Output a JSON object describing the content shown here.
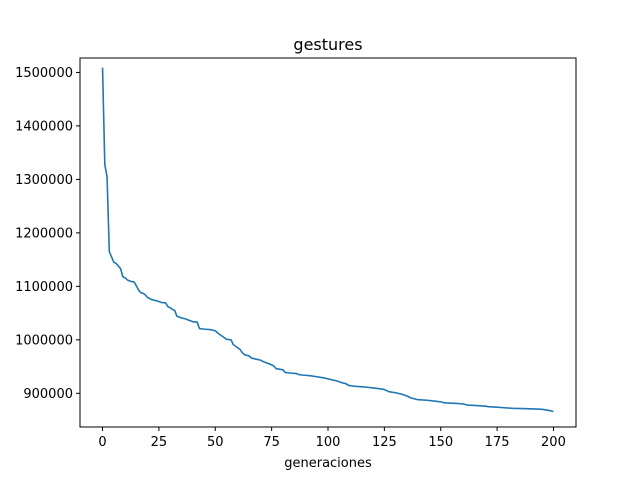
{
  "chart_data": {
    "type": "line",
    "title": "gestures",
    "xlabel": "generaciones",
    "ylabel": "",
    "xlim": [
      -10,
      210
    ],
    "ylim": [
      837000,
      1527000
    ],
    "xticks": [
      0,
      25,
      50,
      75,
      100,
      125,
      150,
      175,
      200
    ],
    "yticks": [
      900000,
      1000000,
      1100000,
      1200000,
      1300000,
      1400000,
      1500000
    ],
    "grid": false,
    "series_color": "#1f77b4",
    "series": [
      {
        "points": [
          [
            0,
            1509000
          ],
          [
            1,
            1328000
          ],
          [
            2,
            1305000
          ],
          [
            3,
            1165000
          ],
          [
            4,
            1155000
          ],
          [
            5,
            1145000
          ],
          [
            6,
            1143000
          ],
          [
            7,
            1138000
          ],
          [
            8,
            1133000
          ],
          [
            9,
            1118000
          ],
          [
            10,
            1116000
          ],
          [
            11,
            1112000
          ],
          [
            12,
            1110000
          ],
          [
            13,
            1109000
          ],
          [
            14,
            1108000
          ],
          [
            15,
            1101000
          ],
          [
            16,
            1093000
          ],
          [
            17,
            1088000
          ],
          [
            18,
            1087000
          ],
          [
            19,
            1084000
          ],
          [
            20,
            1079000
          ],
          [
            22,
            1075000
          ],
          [
            24,
            1073000
          ],
          [
            26,
            1070000
          ],
          [
            28,
            1069000
          ],
          [
            29,
            1062000
          ],
          [
            30,
            1060000
          ],
          [
            31,
            1057000
          ],
          [
            32,
            1055000
          ],
          [
            33,
            1044000
          ],
          [
            35,
            1041000
          ],
          [
            37,
            1039000
          ],
          [
            38,
            1037000
          ],
          [
            40,
            1034000
          ],
          [
            42,
            1033000
          ],
          [
            43,
            1021000
          ],
          [
            45,
            1020000
          ],
          [
            48,
            1019000
          ],
          [
            50,
            1017000
          ],
          [
            51,
            1013000
          ],
          [
            53,
            1007000
          ],
          [
            55,
            1001000
          ],
          [
            57,
            1000000
          ],
          [
            58,
            991000
          ],
          [
            60,
            985000
          ],
          [
            61,
            982000
          ],
          [
            62,
            976000
          ],
          [
            63,
            972000
          ],
          [
            65,
            970000
          ],
          [
            66,
            966000
          ],
          [
            68,
            964000
          ],
          [
            70,
            962000
          ],
          [
            72,
            958000
          ],
          [
            74,
            955000
          ],
          [
            76,
            951000
          ],
          [
            77,
            946000
          ],
          [
            80,
            944000
          ],
          [
            81,
            939000
          ],
          [
            83,
            938000
          ],
          [
            86,
            937000
          ],
          [
            87,
            935000
          ],
          [
            89,
            934000
          ],
          [
            92,
            933000
          ],
          [
            95,
            931000
          ],
          [
            98,
            929000
          ],
          [
            101,
            926000
          ],
          [
            104,
            923000
          ],
          [
            106,
            920000
          ],
          [
            108,
            918000
          ],
          [
            109,
            915000
          ],
          [
            112,
            913000
          ],
          [
            116,
            912000
          ],
          [
            120,
            910000
          ],
          [
            124,
            908000
          ],
          [
            125,
            907000
          ],
          [
            127,
            903000
          ],
          [
            130,
            901000
          ],
          [
            133,
            898000
          ],
          [
            135,
            895000
          ],
          [
            137,
            891000
          ],
          [
            140,
            888000
          ],
          [
            144,
            887000
          ],
          [
            148,
            885000
          ],
          [
            150,
            884000
          ],
          [
            152,
            882000
          ],
          [
            157,
            881000
          ],
          [
            160,
            880000
          ],
          [
            162,
            878000
          ],
          [
            166,
            877000
          ],
          [
            170,
            876000
          ],
          [
            171,
            875000
          ],
          [
            175,
            874000
          ],
          [
            178,
            873000
          ],
          [
            182,
            872000
          ],
          [
            190,
            871000
          ],
          [
            195,
            870000
          ],
          [
            198,
            868000
          ],
          [
            200,
            866000
          ]
        ]
      }
    ]
  }
}
